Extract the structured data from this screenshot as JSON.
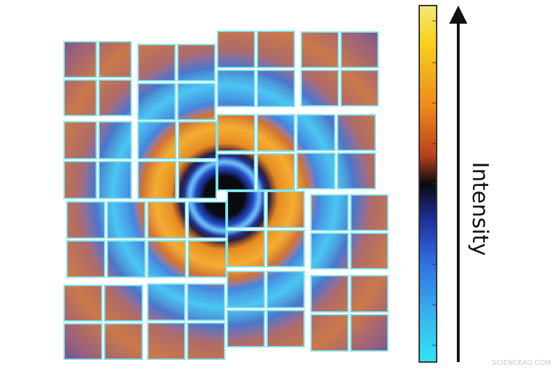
{
  "texts": {
    "axis_label": "Intensity",
    "watermark": "SCIENCEAQ.COM"
  }
}
